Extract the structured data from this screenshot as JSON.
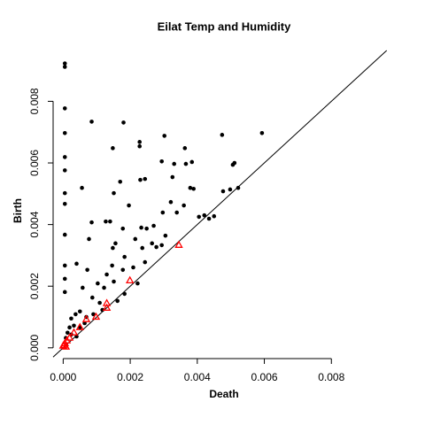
{
  "chart_data": {
    "type": "scatter",
    "title": "Eilat Temp and Humidity",
    "x_label": "Death",
    "y_label": "Birth",
    "xlim": [
      -0.0003,
      0.01
    ],
    "ylim": [
      -0.00035,
      0.00965
    ],
    "xticks": [
      {
        "value": 0,
        "label": "0.000"
      },
      {
        "value": 0.002,
        "label": "0.002"
      },
      {
        "value": 0.004,
        "label": "0.004"
      },
      {
        "value": 0.006,
        "label": "0.006"
      },
      {
        "value": 0.008,
        "label": "0.008"
      }
    ],
    "yticks": [
      {
        "value": 0,
        "label": "0.000"
      },
      {
        "value": 0.002,
        "label": "0.002"
      },
      {
        "value": 0.004,
        "label": "0.004"
      },
      {
        "value": 0.006,
        "label": "0.006"
      },
      {
        "value": 0.008,
        "label": "0.008"
      }
    ],
    "diagonal": true,
    "series": [
      {
        "color": "#000000",
        "marker": "circle",
        "x": [
          5e-05,
          5e-05,
          5e-05,
          5e-05,
          5e-05,
          5e-05,
          5e-05,
          5e-05,
          5e-05,
          5e-05,
          5e-05,
          5e-05,
          0.00085,
          0.0018,
          0.00228,
          0.00228,
          0.00302,
          0.00366,
          0.00363,
          0.00474,
          0.00593,
          0.00294,
          0.00331,
          0.00056,
          0.00148,
          0.00151,
          0.0017,
          0.0023,
          0.00244,
          0.00326,
          0.00384,
          0.00506,
          0.00511,
          0.00477,
          0.00498,
          0.00522,
          0.00379,
          0.00389,
          0.00321,
          0.0036,
          0.00421,
          0.00405,
          0.00435,
          0.0045,
          0.00127,
          0.0014,
          0.00085,
          0.00077,
          0.00178,
          0.00233,
          0.00249,
          0.0027,
          0.00196,
          0.00297,
          0.00305,
          0.00339,
          0.00278,
          0.00156,
          0.00148,
          0.00183,
          0.00215,
          0.00236,
          0.00265,
          0.00294,
          0.00244,
          0.00209,
          0.0013,
          0.0004,
          0.00072,
          0.00058,
          0.00103,
          0.00122,
          0.00151,
          0.00178,
          0.00146,
          0.00087,
          0.00109,
          0.00069,
          0.0005,
          0.00037,
          0.00024,
          0.00019,
          0.00032,
          0.0005,
          0.00064,
          0.0009,
          0.00117,
          0.00013,
          0.00024,
          8e-05,
          0.0004,
          0.00183,
          0.00162,
          0.00222
        ],
        "y": [
          0.00923,
          0.00912,
          0.00777,
          0.00697,
          0.00619,
          0.00576,
          0.00502,
          0.00467,
          0.00367,
          0.00267,
          0.00224,
          0.00181,
          0.00734,
          0.00731,
          0.00668,
          0.00654,
          0.00688,
          0.00597,
          0.00648,
          0.00691,
          0.00697,
          0.00605,
          0.00597,
          0.00519,
          0.00648,
          0.00502,
          0.00539,
          0.00545,
          0.00548,
          0.00554,
          0.00603,
          0.00594,
          0.006,
          0.00508,
          0.00514,
          0.00519,
          0.00519,
          0.00516,
          0.00473,
          0.00462,
          0.0043,
          0.00425,
          0.00419,
          0.00427,
          0.0041,
          0.0041,
          0.00407,
          0.00353,
          0.00387,
          0.0039,
          0.00387,
          0.00396,
          0.00462,
          0.00439,
          0.00364,
          0.00439,
          0.00327,
          0.00339,
          0.00324,
          0.00295,
          0.00353,
          0.00324,
          0.00339,
          0.00333,
          0.00278,
          0.00261,
          0.00238,
          0.00273,
          0.00253,
          0.00195,
          0.00209,
          0.00195,
          0.00215,
          0.00253,
          0.00267,
          0.00163,
          0.00146,
          0.001,
          0.00118,
          0.00109,
          0.00095,
          0.00066,
          0.00072,
          0.00066,
          0.0008,
          0.00109,
          0.00123,
          0.00049,
          0.00043,
          0.00032,
          0.00037,
          0.00175,
          0.00152,
          0.00209
        ]
      },
      {
        "color": "#ff0000",
        "marker": "triangle",
        "x": [
          0.00345,
          0.00199,
          0.0013,
          0.0013,
          0.00098,
          0.00069,
          0.0005,
          0.00032,
          0.00019,
          0.00011,
          5e-05,
          3e-05,
          8e-05,
          0
        ],
        "y": [
          0.00333,
          0.00218,
          0.00144,
          0.00129,
          0.001,
          0.00092,
          0.00066,
          0.00049,
          0.00032,
          0.00023,
          0.00014,
          9e-05,
          3e-05,
          6e-05
        ]
      }
    ]
  }
}
